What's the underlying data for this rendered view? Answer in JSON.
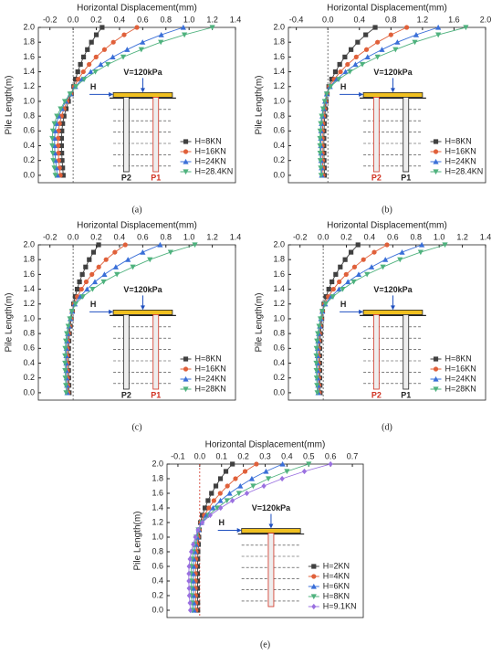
{
  "chart_data": [
    {
      "type": "line",
      "caption": "(a)",
      "xlabel": "Horizontal Displacement(mm)",
      "ylabel": "Pile Length(m)",
      "xlim": [
        -0.3,
        1.4
      ],
      "xticks": [
        -0.2,
        {
          "value": 0,
          "label": "0.0"
        },
        0.2,
        0.4,
        0.6,
        0.8,
        {
          "value": 1,
          "label": "1.0"
        },
        1.2,
        1.4
      ],
      "ylim": [
        -0.1,
        2.0
      ],
      "yticks": [
        {
          "value": 0,
          "label": "0.0"
        },
        0.2,
        0.4,
        0.6,
        0.8,
        {
          "value": 1,
          "label": "1.0"
        },
        1.2,
        1.4,
        1.6,
        1.8,
        {
          "value": 2,
          "label": "2.0"
        }
      ],
      "legend": "lower right",
      "inset_title": "V=120kPa",
      "inset_load": "H",
      "piles": [
        {
          "label": "P2",
          "color": "#222222"
        },
        {
          "label": "P1",
          "color": "#d03020"
        }
      ],
      "y": [
        0,
        0.1,
        0.2,
        0.3,
        0.4,
        0.5,
        0.6,
        0.7,
        0.8,
        0.9,
        1.0,
        1.1,
        1.2,
        1.3,
        1.4,
        1.5,
        1.6,
        1.7,
        1.8,
        1.9,
        2.0
      ],
      "series": [
        {
          "name": "H=8KN",
          "color": "#404040",
          "marker": "square",
          "x": [
            -0.085,
            -0.09,
            -0.095,
            -0.098,
            -0.1,
            -0.1,
            -0.097,
            -0.09,
            -0.078,
            -0.06,
            -0.04,
            -0.015,
            0.005,
            0.02,
            0.04,
            0.063,
            0.09,
            0.123,
            0.158,
            0.2,
            0.25
          ]
        },
        {
          "name": "H=16KN",
          "color": "#e0603a",
          "marker": "circle",
          "x": [
            -0.11,
            -0.117,
            -0.124,
            -0.127,
            -0.13,
            -0.13,
            -0.126,
            -0.117,
            -0.101,
            -0.078,
            -0.052,
            -0.02,
            0.011,
            0.044,
            0.088,
            0.138,
            0.198,
            0.27,
            0.347,
            0.44,
            0.55
          ]
        },
        {
          "name": "H=24KN",
          "color": "#3a6fd8",
          "marker": "triangle-up",
          "x": [
            -0.136,
            -0.144,
            -0.152,
            -0.157,
            -0.16,
            -0.16,
            -0.155,
            -0.144,
            -0.125,
            -0.096,
            -0.064,
            -0.024,
            0.019,
            0.076,
            0.152,
            0.238,
            0.342,
            0.466,
            0.599,
            0.76,
            0.95
          ]
        },
        {
          "name": "H=28.4KN",
          "color": "#4fb27e",
          "marker": "triangle-down",
          "x": [
            -0.153,
            -0.162,
            -0.171,
            -0.176,
            -0.18,
            -0.18,
            -0.175,
            -0.162,
            -0.14,
            -0.108,
            -0.072,
            -0.027,
            0.024,
            0.096,
            0.192,
            0.3,
            0.432,
            0.588,
            0.756,
            0.96,
            1.2
          ]
        }
      ]
    },
    {
      "type": "line",
      "caption": "(b)",
      "xlabel": "Horizontal Displacement(mm)",
      "ylabel": "Pile Length(m)",
      "xlim": [
        -0.5,
        2.0
      ],
      "xticks": [
        -0.4,
        {
          "value": 0,
          "label": "0.0"
        },
        0.4,
        0.8,
        1.2,
        1.6,
        {
          "value": 2,
          "label": "2.0"
        }
      ],
      "ylim": [
        -0.1,
        2.0
      ],
      "yticks": [
        {
          "value": 0,
          "label": "0.0"
        },
        0.2,
        0.4,
        0.6,
        0.8,
        {
          "value": 1,
          "label": "1.0"
        },
        1.2,
        1.4,
        1.6,
        1.8,
        {
          "value": 2,
          "label": "2.0"
        }
      ],
      "legend": "lower right",
      "inset_title": "V=120kPa",
      "inset_load": "H",
      "piles": [
        {
          "label": "P2",
          "color": "#d03020"
        },
        {
          "label": "P1",
          "color": "#222222"
        }
      ],
      "y": [
        0,
        0.1,
        0.2,
        0.3,
        0.4,
        0.5,
        0.6,
        0.7,
        0.8,
        0.9,
        1.0,
        1.1,
        1.2,
        1.3,
        1.4,
        1.5,
        1.6,
        1.7,
        1.8,
        1.9,
        2.0
      ],
      "series": [
        {
          "name": "H=8KN",
          "color": "#404040",
          "marker": "square",
          "x": [
            -0.043,
            -0.045,
            -0.048,
            -0.049,
            -0.05,
            -0.05,
            -0.049,
            -0.045,
            -0.039,
            -0.03,
            -0.02,
            -0.008,
            0.012,
            0.048,
            0.096,
            0.15,
            0.216,
            0.294,
            0.378,
            0.48,
            0.6
          ]
        },
        {
          "name": "H=16KN",
          "color": "#e0603a",
          "marker": "circle",
          "x": [
            -0.06,
            -0.063,
            -0.067,
            -0.069,
            -0.07,
            -0.07,
            -0.068,
            -0.063,
            -0.055,
            -0.042,
            -0.028,
            -0.011,
            0.02,
            0.08,
            0.16,
            0.25,
            0.36,
            0.49,
            0.63,
            0.8,
            1.0
          ]
        },
        {
          "name": "H=24KN",
          "color": "#3a6fd8",
          "marker": "triangle-up",
          "x": [
            -0.077,
            -0.081,
            -0.086,
            -0.088,
            -0.09,
            -0.09,
            -0.087,
            -0.081,
            -0.07,
            -0.054,
            -0.036,
            -0.014,
            0.028,
            0.112,
            0.224,
            0.35,
            0.504,
            0.686,
            0.882,
            1.12,
            1.4
          ]
        },
        {
          "name": "H=28.4KN",
          "color": "#4fb27e",
          "marker": "triangle-down",
          "x": [
            -0.085,
            -0.09,
            -0.095,
            -0.098,
            -0.1,
            -0.1,
            -0.097,
            -0.09,
            -0.078,
            -0.06,
            -0.04,
            -0.015,
            0.035,
            0.14,
            0.28,
            0.438,
            0.63,
            0.858,
            1.103,
            1.4,
            1.75
          ]
        }
      ]
    },
    {
      "type": "line",
      "caption": "(c)",
      "xlabel": "Horizontal Displacement(mm)",
      "ylabel": "Pile Length(m)",
      "xlim": [
        -0.3,
        1.4
      ],
      "xticks": [
        -0.2,
        {
          "value": 0,
          "label": "0.0"
        },
        0.2,
        0.4,
        0.6,
        0.8,
        {
          "value": 1,
          "label": "1.0"
        },
        1.2,
        1.4
      ],
      "ylim": [
        -0.1,
        2.0
      ],
      "yticks": [
        {
          "value": 0,
          "label": "0.0"
        },
        0.2,
        0.4,
        0.6,
        0.8,
        {
          "value": 1,
          "label": "1.0"
        },
        1.2,
        1.4,
        1.6,
        1.8,
        {
          "value": 2,
          "label": "2.0"
        }
      ],
      "legend": "lower right",
      "inset_title": "V=120kPa",
      "inset_load": "H",
      "piles": [
        {
          "label": "P2",
          "color": "#222222"
        },
        {
          "label": "P1",
          "color": "#d03020"
        }
      ],
      "y": [
        0,
        0.1,
        0.2,
        0.3,
        0.4,
        0.5,
        0.6,
        0.7,
        0.8,
        0.9,
        1.0,
        1.1,
        1.2,
        1.3,
        1.4,
        1.5,
        1.6,
        1.7,
        1.8,
        1.9,
        2.0
      ],
      "series": [
        {
          "name": "H=8KN",
          "color": "#404040",
          "marker": "square",
          "x": [
            -0.034,
            -0.036,
            -0.038,
            -0.039,
            -0.04,
            -0.04,
            -0.039,
            -0.036,
            -0.031,
            -0.024,
            -0.016,
            -0.006,
            0.004,
            0.018,
            0.035,
            0.055,
            0.079,
            0.108,
            0.139,
            0.176,
            0.22
          ]
        },
        {
          "name": "H=16KN",
          "color": "#e0603a",
          "marker": "circle",
          "x": [
            -0.043,
            -0.045,
            -0.048,
            -0.049,
            -0.05,
            -0.05,
            -0.049,
            -0.045,
            -0.039,
            -0.03,
            -0.02,
            -0.008,
            0.009,
            0.036,
            0.072,
            0.113,
            0.162,
            0.221,
            0.284,
            0.36,
            0.45
          ]
        },
        {
          "name": "H=24KN",
          "color": "#3a6fd8",
          "marker": "triangle-up",
          "x": [
            -0.051,
            -0.054,
            -0.057,
            -0.059,
            -0.06,
            -0.06,
            -0.058,
            -0.054,
            -0.047,
            -0.036,
            -0.024,
            -0.009,
            0.015,
            0.06,
            0.12,
            0.188,
            0.27,
            0.368,
            0.473,
            0.6,
            0.75
          ]
        },
        {
          "name": "H=28KN",
          "color": "#4fb27e",
          "marker": "triangle-down",
          "x": [
            -0.06,
            -0.063,
            -0.067,
            -0.069,
            -0.07,
            -0.07,
            -0.068,
            -0.063,
            -0.055,
            -0.042,
            -0.028,
            -0.011,
            0.021,
            0.084,
            0.168,
            0.263,
            0.378,
            0.515,
            0.662,
            0.84,
            1.05
          ]
        }
      ]
    },
    {
      "type": "line",
      "caption": "(d)",
      "xlabel": "Horizontal Displacement(mm)",
      "ylabel": "Pile Length(m)",
      "xlim": [
        -0.3,
        1.4
      ],
      "xticks": [
        -0.2,
        {
          "value": 0,
          "label": "0.0"
        },
        0.2,
        0.4,
        0.6,
        0.8,
        {
          "value": 1,
          "label": "1.0"
        },
        1.2,
        1.4
      ],
      "ylim": [
        -0.1,
        2.0
      ],
      "yticks": [
        {
          "value": 0,
          "label": "0.0"
        },
        0.2,
        0.4,
        0.6,
        0.8,
        {
          "value": 1,
          "label": "1.0"
        },
        1.2,
        1.4,
        1.6,
        1.8,
        {
          "value": 2,
          "label": "2.0"
        }
      ],
      "legend": "lower right",
      "inset_title": "V=120kPa",
      "inset_load": "H",
      "piles": [
        {
          "label": "P2",
          "color": "#d03020"
        },
        {
          "label": "P1",
          "color": "#222222"
        }
      ],
      "y": [
        0,
        0.1,
        0.2,
        0.3,
        0.4,
        0.5,
        0.6,
        0.7,
        0.8,
        0.9,
        1.0,
        1.1,
        1.2,
        1.3,
        1.4,
        1.5,
        1.6,
        1.7,
        1.8,
        1.9,
        2.0
      ],
      "series": [
        {
          "name": "H=8KN",
          "color": "#404040",
          "marker": "square",
          "x": [
            -0.026,
            -0.027,
            -0.029,
            -0.029,
            -0.03,
            -0.03,
            -0.029,
            -0.027,
            -0.023,
            -0.018,
            -0.012,
            -0.005,
            0.006,
            0.024,
            0.048,
            0.075,
            0.108,
            0.147,
            0.189,
            0.24,
            0.3
          ]
        },
        {
          "name": "H=16KN",
          "color": "#e0603a",
          "marker": "circle",
          "x": [
            -0.034,
            -0.036,
            -0.038,
            -0.039,
            -0.04,
            -0.04,
            -0.039,
            -0.036,
            -0.031,
            -0.024,
            -0.016,
            -0.006,
            0.011,
            0.044,
            0.088,
            0.138,
            0.198,
            0.27,
            0.347,
            0.44,
            0.55
          ]
        },
        {
          "name": "H=24KN",
          "color": "#3a6fd8",
          "marker": "triangle-up",
          "x": [
            -0.043,
            -0.045,
            -0.048,
            -0.049,
            -0.05,
            -0.05,
            -0.049,
            -0.045,
            -0.039,
            -0.03,
            -0.02,
            -0.008,
            0.017,
            0.068,
            0.136,
            0.213,
            0.306,
            0.417,
            0.536,
            0.68,
            0.85
          ]
        },
        {
          "name": "H=28KN",
          "color": "#4fb27e",
          "marker": "triangle-down",
          "x": [
            -0.051,
            -0.054,
            -0.057,
            -0.059,
            -0.06,
            -0.06,
            -0.058,
            -0.054,
            -0.047,
            -0.036,
            -0.024,
            -0.009,
            0.021,
            0.084,
            0.168,
            0.263,
            0.378,
            0.515,
            0.662,
            0.84,
            1.05
          ]
        }
      ]
    },
    {
      "type": "line",
      "caption": "(e)",
      "xlabel": "Horizontal Displacement(mm)",
      "ylabel": "Pile Length(m)",
      "xlim": [
        -0.15,
        0.75
      ],
      "xticks": [
        -0.1,
        {
          "value": 0,
          "label": "0.0"
        },
        0.1,
        0.2,
        0.3,
        0.4,
        0.5,
        0.6,
        0.7
      ],
      "ylim": [
        -0.1,
        2.0
      ],
      "yticks": [
        {
          "value": 0,
          "label": "0.0"
        },
        0.2,
        0.4,
        0.6,
        0.8,
        {
          "value": 1,
          "label": "1.0"
        },
        1.2,
        1.4,
        1.6,
        1.8,
        {
          "value": 2,
          "label": "2.0"
        }
      ],
      "legend": "lower right",
      "inset_title": "V=120kPa",
      "inset_load": "H",
      "y": [
        0,
        0.1,
        0.2,
        0.3,
        0.4,
        0.5,
        0.6,
        0.7,
        0.8,
        0.9,
        1.0,
        1.1,
        1.2,
        1.3,
        1.4,
        1.5,
        1.6,
        1.7,
        1.8,
        1.9,
        2.0
      ],
      "series": [
        {
          "name": "H=2KN",
          "color": "#404040",
          "marker": "square",
          "x": [
            -0.009,
            -0.009,
            -0.01,
            -0.01,
            -0.01,
            -0.01,
            -0.01,
            -0.009,
            -0.008,
            -0.006,
            -0.004,
            -0.002,
            0.003,
            0.012,
            0.024,
            0.038,
            0.054,
            0.074,
            0.095,
            0.12,
            0.15
          ]
        },
        {
          "name": "H=4KN",
          "color": "#e0603a",
          "marker": "circle",
          "x": [
            -0.017,
            -0.018,
            -0.019,
            -0.02,
            -0.02,
            -0.02,
            -0.019,
            -0.018,
            -0.016,
            -0.012,
            -0.008,
            -0.003,
            0.005,
            0.021,
            0.042,
            0.065,
            0.094,
            0.127,
            0.164,
            0.208,
            0.26
          ]
        },
        {
          "name": "H=6KN",
          "color": "#3a6fd8",
          "marker": "triangle-up",
          "x": [
            -0.026,
            -0.027,
            -0.029,
            -0.029,
            -0.03,
            -0.03,
            -0.029,
            -0.027,
            -0.023,
            -0.018,
            -0.012,
            -0.005,
            0.008,
            0.03,
            0.061,
            0.095,
            0.137,
            0.186,
            0.239,
            0.304,
            0.38
          ]
        },
        {
          "name": "H=8KN",
          "color": "#4fb27e",
          "marker": "triangle-down",
          "x": [
            -0.034,
            -0.036,
            -0.038,
            -0.039,
            -0.04,
            -0.04,
            -0.039,
            -0.036,
            -0.031,
            -0.024,
            -0.016,
            -0.006,
            0.01,
            0.04,
            0.08,
            0.125,
            0.18,
            0.245,
            0.315,
            0.4,
            0.5
          ]
        },
        {
          "name": "H=9.1KN",
          "color": "#9a70e0",
          "marker": "diamond",
          "x": [
            -0.043,
            -0.045,
            -0.048,
            -0.049,
            -0.05,
            -0.05,
            -0.049,
            -0.045,
            -0.039,
            -0.03,
            -0.02,
            -0.008,
            0.012,
            0.048,
            0.096,
            0.15,
            0.216,
            0.294,
            0.378,
            0.48,
            0.6
          ]
        }
      ]
    }
  ]
}
